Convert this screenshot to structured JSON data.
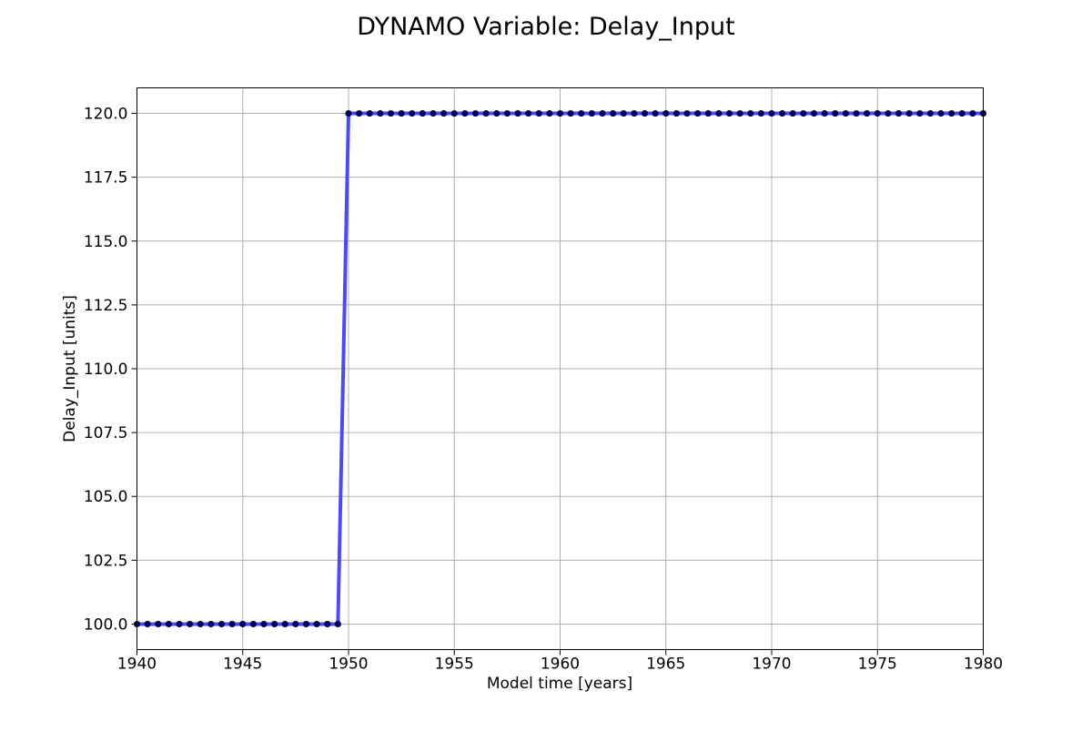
{
  "chart_data": {
    "type": "line",
    "title": "DYNAMO Variable: Delay_Input",
    "xlabel": "Model time [years]",
    "ylabel": "Delay_Input [units]",
    "xlim": [
      1940,
      1980
    ],
    "ylim": [
      99.0,
      121.0
    ],
    "xticks": [
      1940,
      1945,
      1950,
      1955,
      1960,
      1965,
      1970,
      1975,
      1980
    ],
    "yticks": [
      100.0,
      102.5,
      105.0,
      107.5,
      110.0,
      112.5,
      115.0,
      117.5,
      120.0
    ],
    "grid": true,
    "legend": "none",
    "series": [
      {
        "line_color": "#4b4bef",
        "marker_color": "#00005a",
        "points": [
          [
            1940.0,
            100.0
          ],
          [
            1940.5,
            100.0
          ],
          [
            1941.0,
            100.0
          ],
          [
            1941.5,
            100.0
          ],
          [
            1942.0,
            100.0
          ],
          [
            1942.5,
            100.0
          ],
          [
            1943.0,
            100.0
          ],
          [
            1943.5,
            100.0
          ],
          [
            1944.0,
            100.0
          ],
          [
            1944.5,
            100.0
          ],
          [
            1945.0,
            100.0
          ],
          [
            1945.5,
            100.0
          ],
          [
            1946.0,
            100.0
          ],
          [
            1946.5,
            100.0
          ],
          [
            1947.0,
            100.0
          ],
          [
            1947.5,
            100.0
          ],
          [
            1948.0,
            100.0
          ],
          [
            1948.5,
            100.0
          ],
          [
            1949.0,
            100.0
          ],
          [
            1949.5,
            100.0
          ],
          [
            1950.0,
            120.0
          ],
          [
            1950.5,
            120.0
          ],
          [
            1951.0,
            120.0
          ],
          [
            1951.5,
            120.0
          ],
          [
            1952.0,
            120.0
          ],
          [
            1952.5,
            120.0
          ],
          [
            1953.0,
            120.0
          ],
          [
            1953.5,
            120.0
          ],
          [
            1954.0,
            120.0
          ],
          [
            1954.5,
            120.0
          ],
          [
            1955.0,
            120.0
          ],
          [
            1955.5,
            120.0
          ],
          [
            1956.0,
            120.0
          ],
          [
            1956.5,
            120.0
          ],
          [
            1957.0,
            120.0
          ],
          [
            1957.5,
            120.0
          ],
          [
            1958.0,
            120.0
          ],
          [
            1958.5,
            120.0
          ],
          [
            1959.0,
            120.0
          ],
          [
            1959.5,
            120.0
          ],
          [
            1960.0,
            120.0
          ],
          [
            1960.5,
            120.0
          ],
          [
            1961.0,
            120.0
          ],
          [
            1961.5,
            120.0
          ],
          [
            1962.0,
            120.0
          ],
          [
            1962.5,
            120.0
          ],
          [
            1963.0,
            120.0
          ],
          [
            1963.5,
            120.0
          ],
          [
            1964.0,
            120.0
          ],
          [
            1964.5,
            120.0
          ],
          [
            1965.0,
            120.0
          ],
          [
            1965.5,
            120.0
          ],
          [
            1966.0,
            120.0
          ],
          [
            1966.5,
            120.0
          ],
          [
            1967.0,
            120.0
          ],
          [
            1967.5,
            120.0
          ],
          [
            1968.0,
            120.0
          ],
          [
            1968.5,
            120.0
          ],
          [
            1969.0,
            120.0
          ],
          [
            1969.5,
            120.0
          ],
          [
            1970.0,
            120.0
          ],
          [
            1970.5,
            120.0
          ],
          [
            1971.0,
            120.0
          ],
          [
            1971.5,
            120.0
          ],
          [
            1972.0,
            120.0
          ],
          [
            1972.5,
            120.0
          ],
          [
            1973.0,
            120.0
          ],
          [
            1973.5,
            120.0
          ],
          [
            1974.0,
            120.0
          ],
          [
            1974.5,
            120.0
          ],
          [
            1975.0,
            120.0
          ],
          [
            1975.5,
            120.0
          ],
          [
            1976.0,
            120.0
          ],
          [
            1976.5,
            120.0
          ],
          [
            1977.0,
            120.0
          ],
          [
            1977.5,
            120.0
          ],
          [
            1978.0,
            120.0
          ],
          [
            1978.5,
            120.0
          ],
          [
            1979.0,
            120.0
          ],
          [
            1979.5,
            120.0
          ],
          [
            1980.0,
            120.0
          ]
        ]
      }
    ]
  }
}
